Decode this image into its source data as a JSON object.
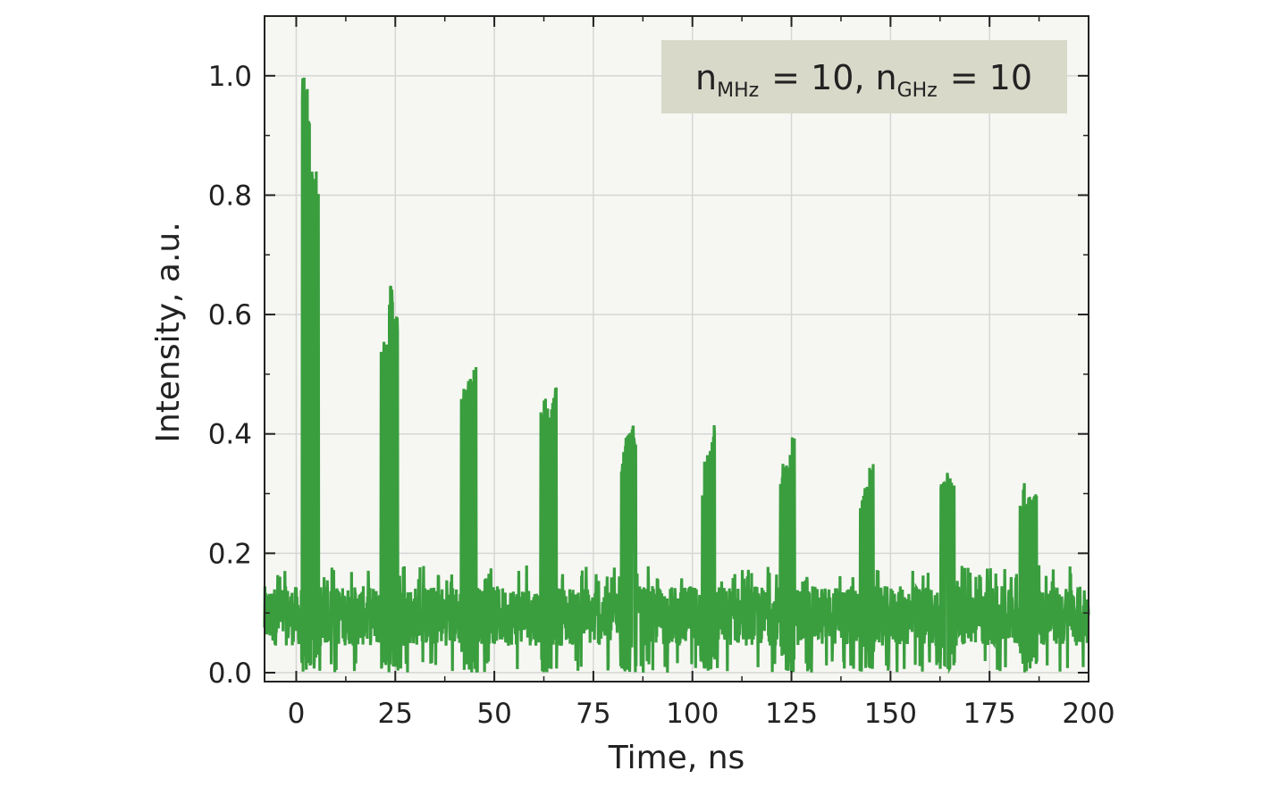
{
  "chart_data": {
    "type": "line",
    "title": "",
    "xlabel": "Time, ns",
    "ylabel": "Intensity, a.u.",
    "xlim": [
      -8,
      200
    ],
    "ylim": [
      -0.015,
      1.1
    ],
    "x_ticks": [
      0,
      25,
      50,
      75,
      100,
      125,
      150,
      175,
      200
    ],
    "y_ticks": [
      0.0,
      0.2,
      0.4,
      0.6,
      0.8,
      1.0
    ],
    "x_tick_labels": [
      "0",
      "25",
      "50",
      "75",
      "100",
      "125",
      "150",
      "175",
      "200"
    ],
    "y_tick_labels": [
      "0.0",
      "0.2",
      "0.4",
      "0.6",
      "0.8",
      "1.0"
    ],
    "grid": true,
    "background_color": "#f6f7f2",
    "series_color": "#3a9e3e",
    "legend": {
      "location": "top-right",
      "background_color": "#d8d9c9",
      "n_mhz_base": "n",
      "n_mhz_sub": "MHz",
      "n_mhz_value": "= 10,",
      "n_ghz_base": "n",
      "n_ghz_sub": "GHz",
      "n_ghz_value": "= 10"
    },
    "series": [
      {
        "baseline": {
          "mean": 0.095,
          "noise_min": 0.0,
          "noise_max": 0.18
        },
        "pulses": [
          {
            "t_start": 1.3,
            "t_end": 5.8,
            "peak": 1.0,
            "samples": [
              1.0,
              0.99,
              0.93,
              0.87,
              0.84,
              0.82
            ]
          },
          {
            "t_start": 21.4,
            "t_end": 25.8,
            "peak": 0.655,
            "samples": [
              0.56,
              0.59,
              0.64,
              0.655,
              0.61,
              0.6
            ]
          },
          {
            "t_start": 41.6,
            "t_end": 45.8,
            "peak": 0.515,
            "samples": [
              0.47,
              0.48,
              0.49,
              0.5,
              0.51,
              0.515
            ]
          },
          {
            "t_start": 61.7,
            "t_end": 65.8,
            "peak": 0.485,
            "samples": [
              0.44,
              0.46,
              0.45,
              0.42,
              0.47,
              0.485
            ]
          },
          {
            "t_start": 81.9,
            "t_end": 85.8,
            "peak": 0.42,
            "samples": [
              0.36,
              0.39,
              0.4,
              0.41,
              0.42,
              0.4
            ]
          },
          {
            "t_start": 102.0,
            "t_end": 105.8,
            "peak": 0.42,
            "samples": [
              0.3,
              0.36,
              0.37,
              0.38,
              0.39,
              0.42
            ]
          },
          {
            "t_start": 122.2,
            "t_end": 125.8,
            "peak": 0.4,
            "samples": [
              0.33,
              0.35,
              0.35,
              0.34,
              0.37,
              0.4
            ]
          },
          {
            "t_start": 142.3,
            "t_end": 145.8,
            "peak": 0.36,
            "samples": [
              0.29,
              0.3,
              0.31,
              0.33,
              0.36,
              0.35
            ]
          },
          {
            "t_start": 162.5,
            "t_end": 166.2,
            "peak": 0.34,
            "samples": [
              0.32,
              0.32,
              0.32,
              0.34,
              0.33,
              0.32
            ]
          },
          {
            "t_start": 182.6,
            "t_end": 187.0,
            "peak": 0.32,
            "samples": [
              0.28,
              0.32,
              0.29,
              0.3,
              0.3,
              0.3
            ]
          }
        ]
      }
    ]
  }
}
